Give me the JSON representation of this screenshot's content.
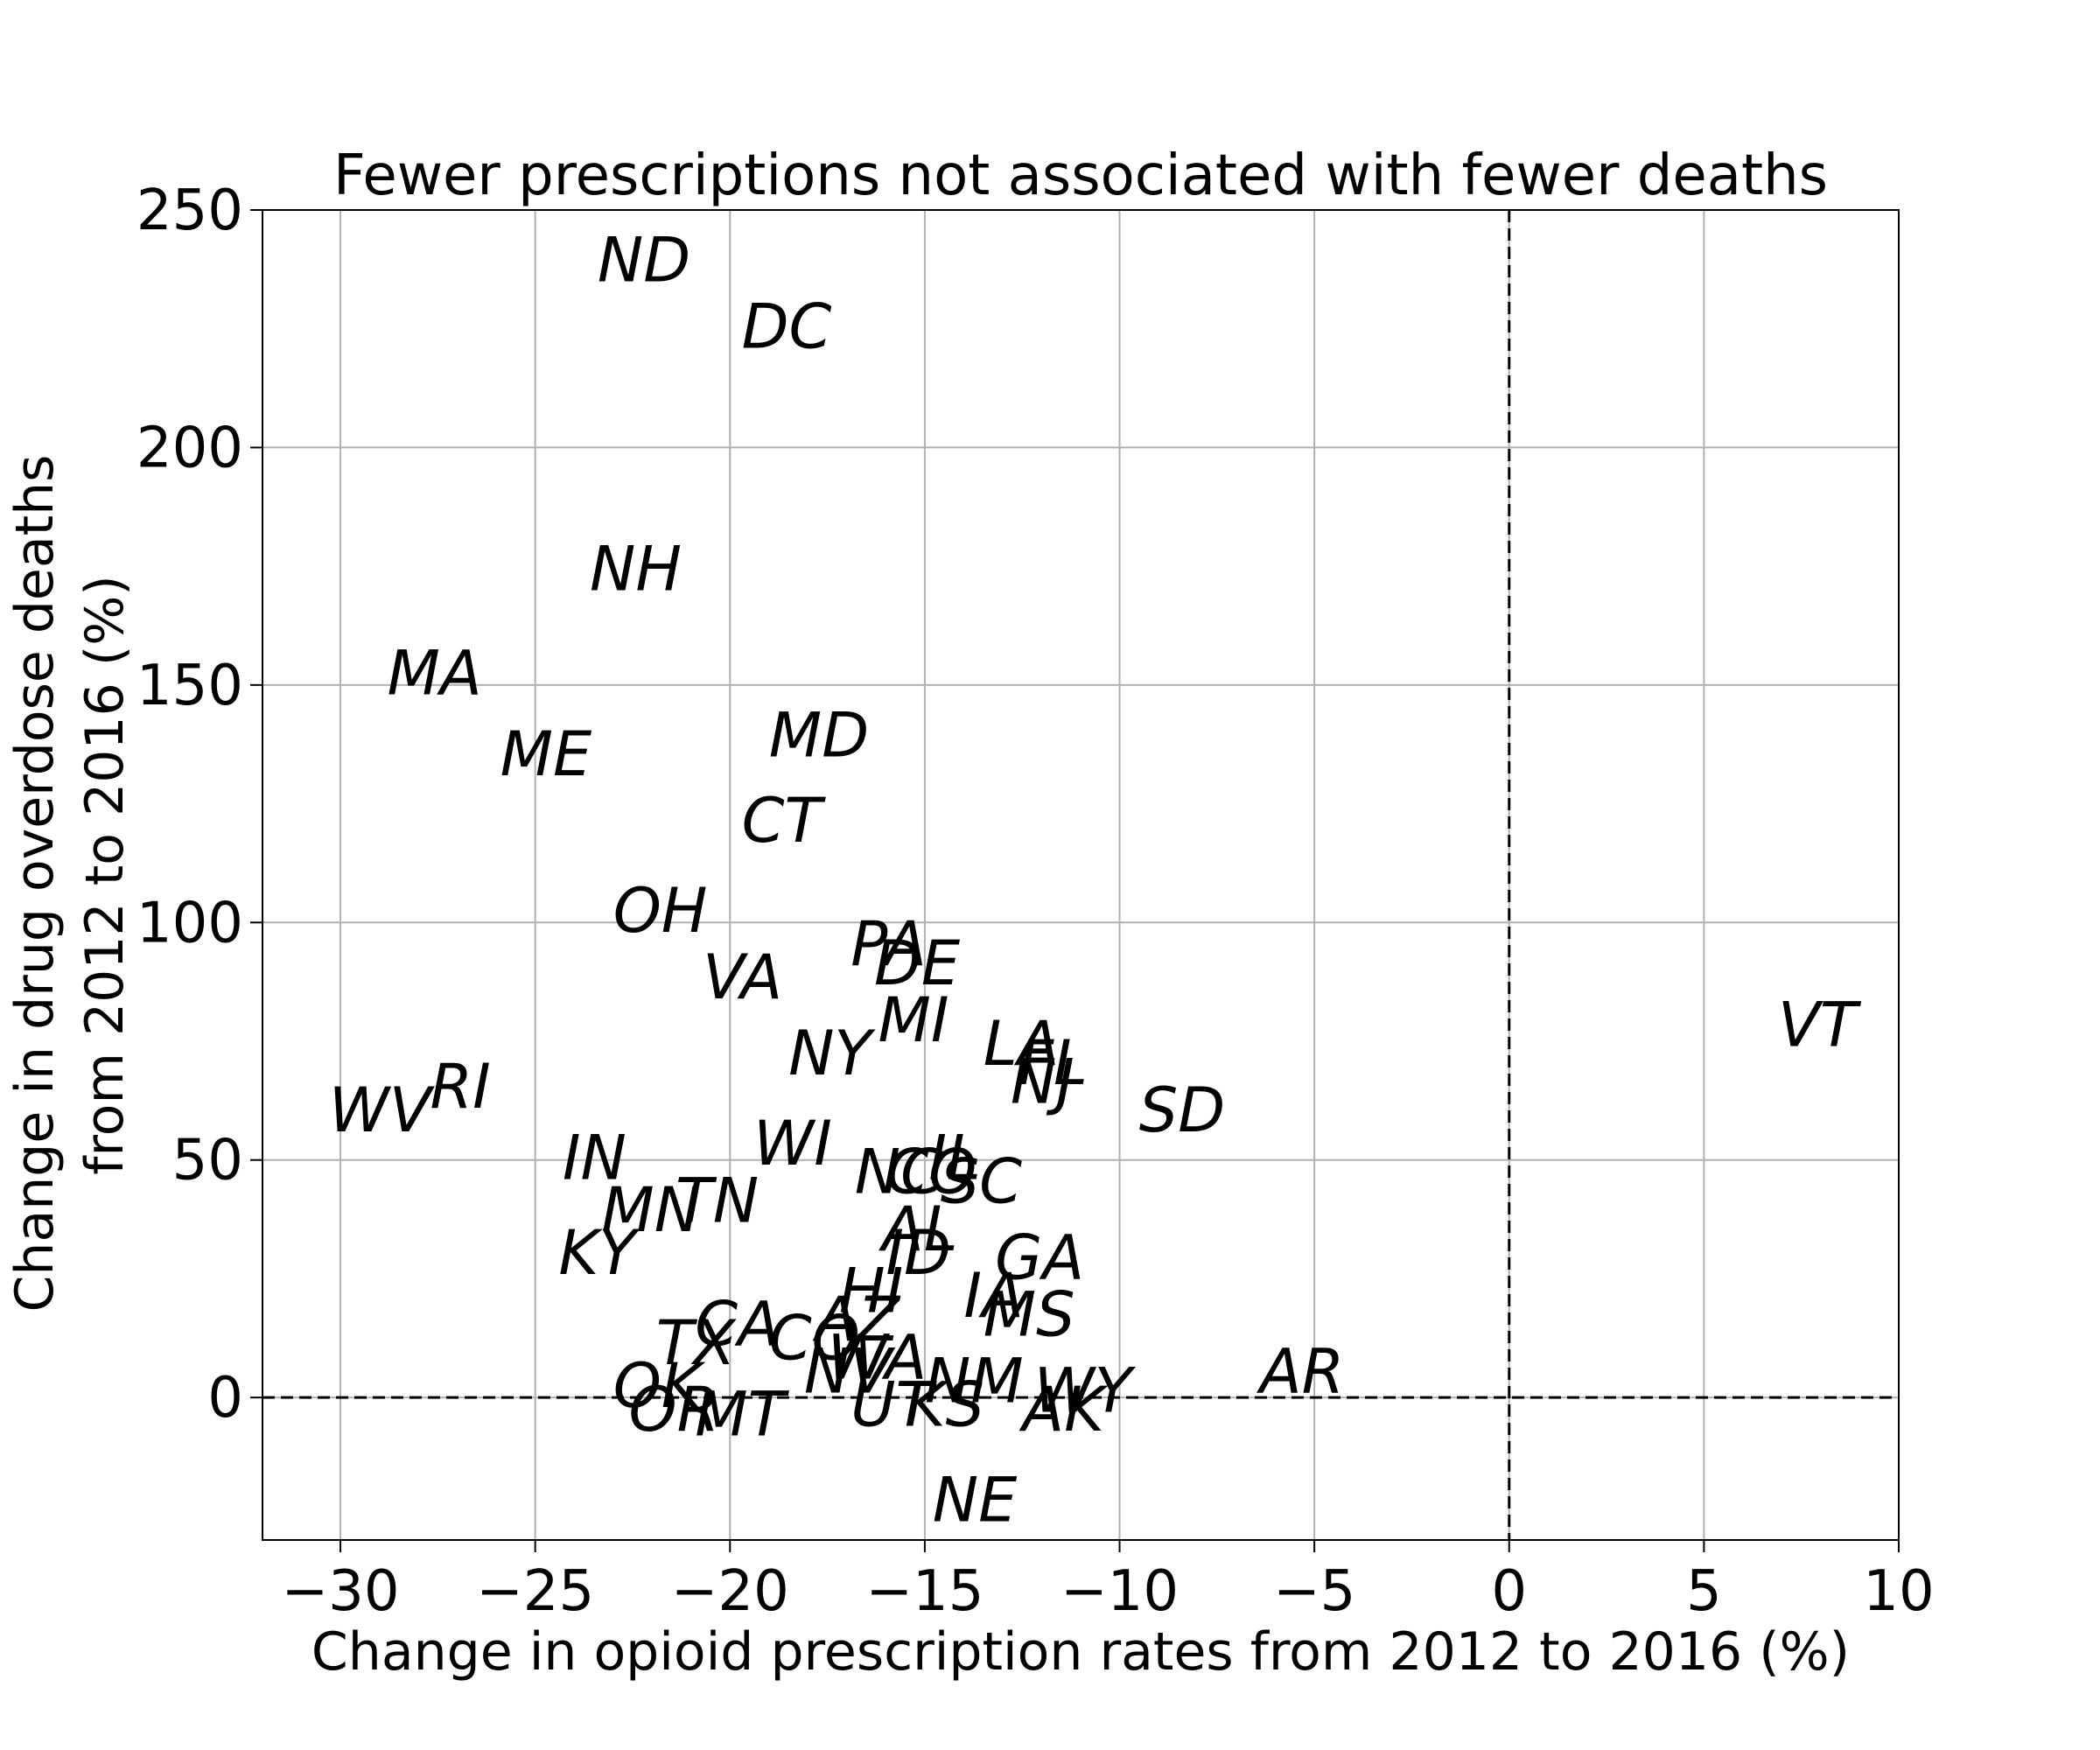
{
  "chart_data": {
    "type": "scatter",
    "title": "Fewer prescriptions not associated with fewer deaths",
    "xlabel": "Change in opioid prescription rates from 2012 to 2016 (%)",
    "ylabel": "Change in drug overdose deaths from 2012 to 2016 (%)",
    "ylabel_lines": [
      "Change in drug overdose deaths",
      "from 2012 to 2016 (%)"
    ],
    "xlim": [
      -32,
      10
    ],
    "ylim": [
      -30,
      250
    ],
    "xticks": [
      -30,
      -25,
      -20,
      -15,
      -10,
      -5,
      0,
      5,
      10
    ],
    "xtick_labels": [
      "−30",
      "−25",
      "−20",
      "−15",
      "−10",
      "−5",
      "0",
      "5",
      "10"
    ],
    "yticks": [
      0,
      50,
      100,
      150,
      200,
      250
    ],
    "ytick_labels": [
      "0",
      "50",
      "100",
      "150",
      "200",
      "250"
    ],
    "grid": true,
    "reference_lines": {
      "x": 0,
      "y": 0,
      "style": "dashed"
    },
    "points": [
      {
        "label": "ND",
        "x": -23.4,
        "y": 235
      },
      {
        "label": "DC",
        "x": -19.7,
        "y": 221
      },
      {
        "label": "NH",
        "x": -23.6,
        "y": 170
      },
      {
        "label": "MA",
        "x": -28.8,
        "y": 148
      },
      {
        "label": "ME",
        "x": -25.9,
        "y": 131
      },
      {
        "label": "MD",
        "x": -19.0,
        "y": 135
      },
      {
        "label": "CT",
        "x": -19.7,
        "y": 117
      },
      {
        "label": "OH",
        "x": -23.0,
        "y": 98
      },
      {
        "label": "VA",
        "x": -20.7,
        "y": 84
      },
      {
        "label": "PA",
        "x": -16.9,
        "y": 91
      },
      {
        "label": "DE",
        "x": -16.3,
        "y": 87
      },
      {
        "label": "MI",
        "x": -16.2,
        "y": 75
      },
      {
        "label": "NY",
        "x": -18.5,
        "y": 68
      },
      {
        "label": "LA",
        "x": -13.5,
        "y": 70
      },
      {
        "label": "FL",
        "x": -12.6,
        "y": 66
      },
      {
        "label": "NJ",
        "x": -12.8,
        "y": 62
      },
      {
        "label": "SD",
        "x": -9.5,
        "y": 56
      },
      {
        "label": "VT",
        "x": 6.9,
        "y": 74
      },
      {
        "label": "RI",
        "x": -27.7,
        "y": 61
      },
      {
        "label": "WV",
        "x": -30.3,
        "y": 56
      },
      {
        "label": "WI",
        "x": -19.4,
        "y": 49
      },
      {
        "label": "IN",
        "x": -24.3,
        "y": 46
      },
      {
        "label": "TN",
        "x": -21.4,
        "y": 37
      },
      {
        "label": "MN",
        "x": -23.3,
        "y": 35
      },
      {
        "label": "KY",
        "x": -24.4,
        "y": 26
      },
      {
        "label": "NC",
        "x": -16.8,
        "y": 43
      },
      {
        "label": "IL",
        "x": -14.9,
        "y": 46
      },
      {
        "label": "CO",
        "x": -16.0,
        "y": 43
      },
      {
        "label": "SC",
        "x": -14.6,
        "y": 41
      },
      {
        "label": "AL",
        "x": -16.1,
        "y": 31
      },
      {
        "label": "ID",
        "x": -16.0,
        "y": 26
      },
      {
        "label": "GA",
        "x": -13.2,
        "y": 25
      },
      {
        "label": "HI",
        "x": -17.2,
        "y": 18
      },
      {
        "label": "IA",
        "x": -14.0,
        "y": 17
      },
      {
        "label": "MS",
        "x": -13.5,
        "y": 13
      },
      {
        "label": "AZ",
        "x": -17.8,
        "y": 12
      },
      {
        "label": "CA",
        "x": -20.9,
        "y": 11
      },
      {
        "label": "CO",
        "x": -19.0,
        "y": 8
      },
      {
        "label": "TX",
        "x": -21.9,
        "y": 7
      },
      {
        "label": "WA",
        "x": -17.5,
        "y": 4
      },
      {
        "label": "NV",
        "x": -18.1,
        "y": 1
      },
      {
        "label": "NM",
        "x": -15.0,
        "y": -1
      },
      {
        "label": "UT",
        "x": -16.9,
        "y": -6
      },
      {
        "label": "KS",
        "x": -15.5,
        "y": -6
      },
      {
        "label": "WY",
        "x": -12.2,
        "y": -3
      },
      {
        "label": "AK",
        "x": -12.5,
        "y": -7
      },
      {
        "label": "OK",
        "x": -23.0,
        "y": -2
      },
      {
        "label": "OR",
        "x": -22.6,
        "y": -7
      },
      {
        "label": "MT",
        "x": -20.9,
        "y": -8
      },
      {
        "label": "AR",
        "x": -6.4,
        "y": 1
      },
      {
        "label": "NE",
        "x": -14.8,
        "y": -26
      }
    ]
  }
}
